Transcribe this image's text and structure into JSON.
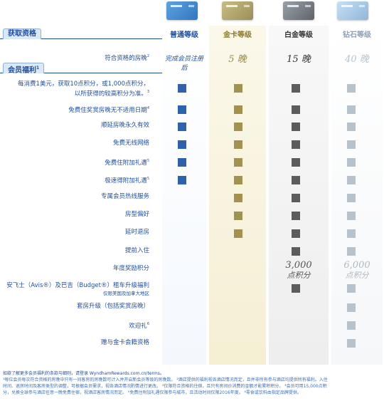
{
  "sections": {
    "qualification": "获取资格",
    "benefits": "会员福利",
    "benefits_sup": "1"
  },
  "levels": [
    {
      "name": "普通等级",
      "qualify": "完成会员注册后"
    },
    {
      "name": "金卡等级",
      "qualify": "5 晚"
    },
    {
      "name": "白金等级",
      "qualify": "15 晚"
    },
    {
      "name": "钻石等级",
      "qualify": "40 晚"
    }
  ],
  "qualify_label": "符合资格的房晚",
  "qualify_label_sup": "2",
  "benefits": [
    {
      "label_line1": "每消费1美元，获取10点积分，或1,000点积分，",
      "label_line2": "以所获得的较高积分为准。",
      "sup": "3",
      "has": [
        true,
        true,
        true,
        true
      ]
    },
    {
      "label": "免费住奖赏房晚无不适用日期",
      "sup": "4",
      "has": [
        true,
        true,
        true,
        true
      ]
    },
    {
      "label": "顺延房晚永久有效",
      "sup": "",
      "has": [
        true,
        true,
        true,
        true
      ]
    },
    {
      "label": "免费无线网络",
      "sup": "",
      "has": [
        true,
        true,
        true,
        true
      ]
    },
    {
      "label": "免费住附加礼遇",
      "sup": "5",
      "has": [
        true,
        true,
        true,
        true
      ]
    },
    {
      "label": "极速得附加礼遇",
      "sup": "5",
      "has": [
        true,
        true,
        true,
        true
      ]
    },
    {
      "label": "专属会员热线服务",
      "sup": "",
      "has": [
        false,
        true,
        true,
        true
      ]
    },
    {
      "label": "房型偏好",
      "sup": "",
      "has": [
        false,
        true,
        true,
        true
      ]
    },
    {
      "label": "延时退房",
      "sup": "",
      "has": [
        false,
        true,
        true,
        true
      ]
    },
    {
      "label": "提前入住",
      "sup": "",
      "has": [
        false,
        false,
        true,
        true
      ]
    },
    {
      "label": "年度奖励积分",
      "sup": "",
      "has": [
        false,
        false,
        false,
        false
      ]
    },
    {
      "label_line1": "安飞士（Avis®）及巴吉（Budget®）租车升级福利",
      "label_line2": "仅限美国及加拿大地区",
      "sup": "",
      "has": [
        false,
        false,
        true,
        true
      ]
    },
    {
      "label": "套房升级（包括奖赏房晚）",
      "sup": "",
      "has": [
        false,
        false,
        false,
        true
      ]
    },
    {
      "label": "欢迎礼",
      "sup": "6",
      "has": [
        false,
        false,
        false,
        true
      ]
    },
    {
      "label": "赠与金卡会籍资格",
      "sup": "",
      "has": [
        false,
        false,
        false,
        true
      ]
    }
  ],
  "annual_points": {
    "platinum_value": "3,000",
    "platinum_unit": "点积分",
    "diamond_value": "6,000",
    "diamond_unit": "点积分"
  },
  "colors": {
    "standard": "#2e62ad",
    "gold": "#a29250",
    "platinum": "#5c5c5c",
    "diamond": "#b6c2cc"
  },
  "footer": {
    "line1": "如欲了解更多会员福利的条款与细则，请登录 WyndhamRewards.com.cn/terms。",
    "line2": "¹每位会员每次符合资格的房晚中只有一间客房的房晚数可计入并开启新会员等级的房晚数。 ²酒店提供的福利视各酒店情况而定，且并非所有参与酒店均提供所有福利。入住",
    "line3": "时间、退房时间及客房类型的调整，可根据会员需求，视各酒店情况酌情进行更改。 ³仅限符合资格的住宿，且只有房间价消费的金额才能累积积分。 ⁴会员可用15,000点积",
    "line4": "分，兑换全球参与酒店任意一晚免费住宿，视酒店客房情况而定。 ⁵免费住附加礼遇仅限参与城市，且活动时间仅限2016年度。 ⁶零食或饮料由指定品牌提供。"
  }
}
